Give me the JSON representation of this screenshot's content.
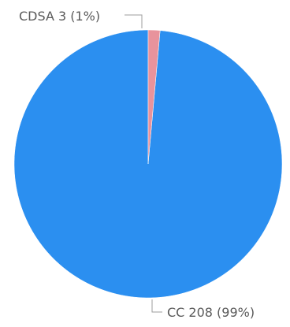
{
  "chart_data": {
    "type": "pie",
    "slices": [
      {
        "name": "CC",
        "value": 208,
        "percent_label": "99%",
        "label": "CC 208 (99%)",
        "color": "#2b8ff0"
      },
      {
        "name": "CDSA",
        "value": 3,
        "percent_label": "1%",
        "label": "CDSA 3 (1%)",
        "color": "#e8939c"
      }
    ],
    "start_angle_deg": 0,
    "direction": "counterclockwise",
    "legend": "none"
  }
}
